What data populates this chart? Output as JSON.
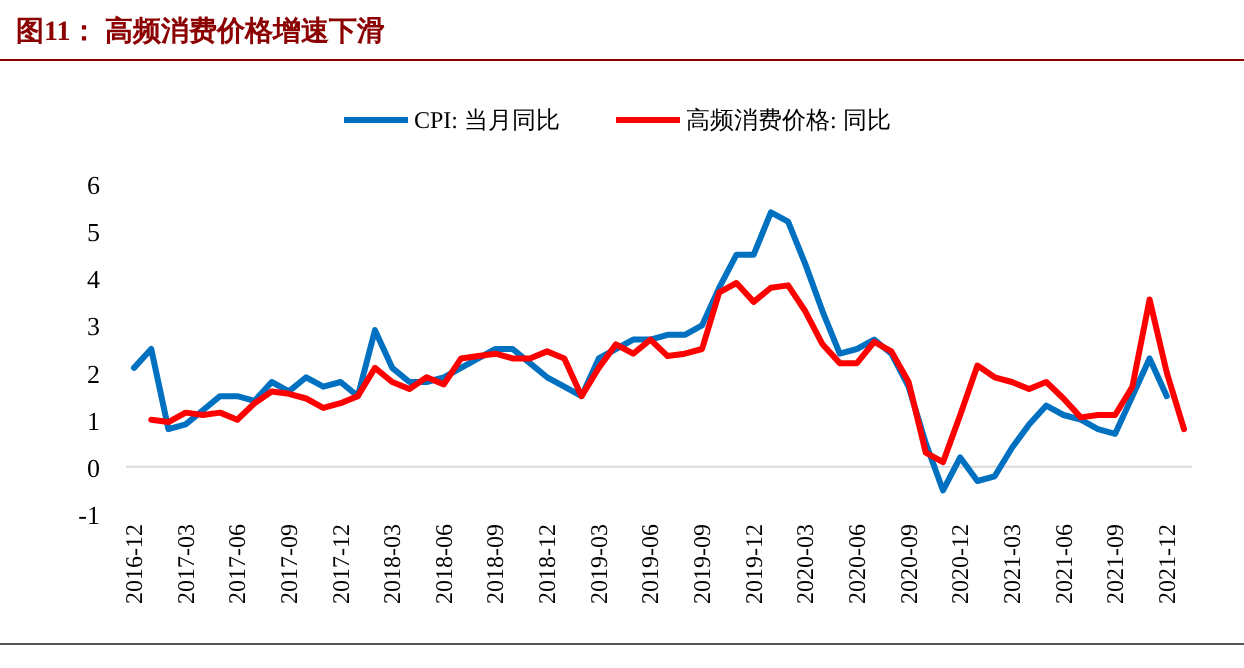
{
  "chart_data": {
    "type": "line",
    "title": "图11：  高频消费价格增速下滑",
    "categories": [
      "2016-12",
      null,
      null,
      "2017-03",
      null,
      null,
      "2017-06",
      null,
      null,
      "2017-09",
      null,
      null,
      "2017-12",
      null,
      null,
      "2018-03",
      null,
      null,
      "2018-06",
      null,
      null,
      "2018-09",
      null,
      null,
      "2018-12",
      null,
      null,
      "2019-03",
      null,
      null,
      "2019-06",
      null,
      null,
      "2019-09",
      null,
      null,
      "2019-12",
      null,
      null,
      "2020-03",
      null,
      null,
      "2020-06",
      null,
      null,
      "2020-09",
      null,
      null,
      "2020-12",
      null,
      null,
      "2021-03",
      null,
      null,
      "2021-06",
      null,
      null,
      "2021-09",
      null,
      null,
      "2021-12",
      null
    ],
    "series": [
      {
        "name": "CPI: 当月同比",
        "color": "#0070c0",
        "values": [
          2.1,
          2.5,
          0.8,
          0.9,
          1.2,
          1.5,
          1.5,
          1.4,
          1.8,
          1.6,
          1.9,
          1.7,
          1.8,
          1.5,
          2.9,
          2.1,
          1.8,
          1.8,
          1.9,
          2.1,
          2.3,
          2.5,
          2.5,
          2.2,
          1.9,
          1.7,
          1.5,
          2.3,
          2.5,
          2.7,
          2.7,
          2.8,
          2.8,
          3.0,
          3.8,
          4.5,
          4.5,
          5.4,
          5.2,
          4.3,
          3.3,
          2.4,
          2.5,
          2.7,
          2.4,
          1.7,
          0.5,
          -0.5,
          0.2,
          -0.3,
          -0.2,
          0.4,
          0.9,
          1.3,
          1.1,
          1.0,
          0.8,
          0.7,
          1.5,
          2.3,
          1.5,
          null
        ]
      },
      {
        "name": "高频消费价格: 同比",
        "color": "#ff0000",
        "values": [
          null,
          1.0,
          0.95,
          1.15,
          1.1,
          1.15,
          1.0,
          1.35,
          1.6,
          1.55,
          1.45,
          1.25,
          1.35,
          1.5,
          2.1,
          1.8,
          1.65,
          1.9,
          1.75,
          2.3,
          2.35,
          2.4,
          2.3,
          2.3,
          2.45,
          2.3,
          1.5,
          2.1,
          2.6,
          2.4,
          2.7,
          2.35,
          2.4,
          2.5,
          3.7,
          3.9,
          3.5,
          3.8,
          3.85,
          3.3,
          2.6,
          2.2,
          2.2,
          2.65,
          2.45,
          1.8,
          0.3,
          0.1,
          1.1,
          2.15,
          1.9,
          1.8,
          1.65,
          1.8,
          1.45,
          1.05,
          1.1,
          1.1,
          1.7,
          3.55,
          2.0,
          0.8
        ]
      }
    ],
    "ylim": [
      -1,
      6
    ],
    "yticks": [
      -1,
      0,
      1,
      2,
      3,
      4,
      5,
      6
    ],
    "legend": "top",
    "grid": false,
    "line_style": "solid",
    "marker": "none"
  }
}
